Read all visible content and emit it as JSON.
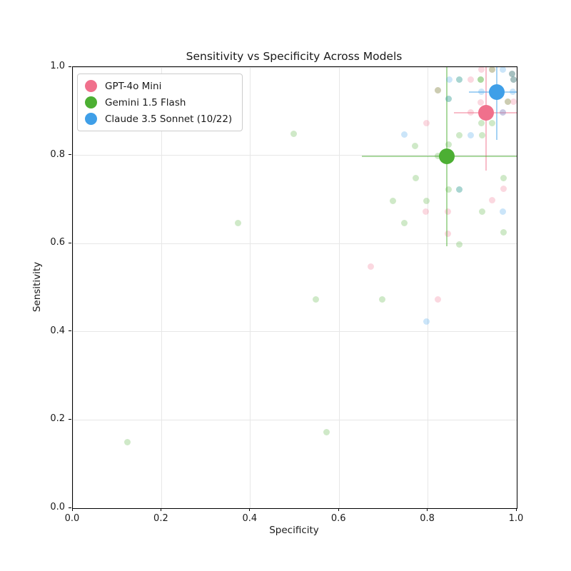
{
  "figure": {
    "title": "Sensitivity vs Specificity Across Models"
  },
  "chart_data": {
    "type": "scatter",
    "title": "Sensitivity vs Specificity Across Models",
    "xlabel": "Specificity",
    "ylabel": "Sensitivity",
    "xlim": [
      0.0,
      1.0
    ],
    "ylim": [
      0.0,
      1.0
    ],
    "xticks": {
      "values": [
        0.0,
        0.2,
        0.4,
        0.6,
        0.8,
        1.0
      ],
      "labels": [
        "0.0",
        "0.2",
        "0.4",
        "0.6",
        "0.8",
        "1.0"
      ]
    },
    "yticks": {
      "values": [
        0.0,
        0.2,
        0.4,
        0.6,
        0.8,
        1.0
      ],
      "labels": [
        "0.0",
        "0.2",
        "0.4",
        "0.6",
        "0.8",
        "1.0"
      ]
    },
    "grid": true,
    "legend": {
      "position": "upper left"
    },
    "series": [
      {
        "name": "GPT-4o Mini",
        "color": "#f0708c",
        "summary": {
          "x": 0.931,
          "y": 0.896,
          "xerr": [
            0.858,
            1.0
          ],
          "yerr": [
            0.765,
            1.0
          ]
        },
        "points": [
          [
            0.921,
            0.994
          ],
          [
            0.945,
            0.994
          ],
          [
            0.99,
            0.984
          ],
          [
            0.896,
            0.972
          ],
          [
            0.992,
            0.972
          ],
          [
            0.823,
            0.947
          ],
          [
            0.918,
            0.92
          ],
          [
            0.98,
            0.922
          ],
          [
            0.993,
            0.921
          ],
          [
            0.896,
            0.897
          ],
          [
            0.969,
            0.897
          ],
          [
            0.796,
            0.873
          ],
          [
            0.795,
            0.673
          ],
          [
            0.845,
            0.673
          ],
          [
            0.944,
            0.698
          ],
          [
            0.97,
            0.724
          ],
          [
            0.845,
            0.622
          ],
          [
            0.823,
            0.473
          ],
          [
            0.671,
            0.548
          ]
        ]
      },
      {
        "name": "Gemini 1.5 Flash",
        "color": "#4caf33",
        "summary": {
          "x": 0.842,
          "y": 0.798,
          "xerr": [
            0.651,
            1.0
          ],
          "yerr": [
            0.594,
            1.0
          ]
        },
        "points": [
          [
            0.945,
            0.994
          ],
          [
            0.99,
            0.984
          ],
          [
            0.871,
            0.972
          ],
          [
            0.919,
            0.972
          ],
          [
            0.919,
            0.972
          ],
          [
            0.992,
            0.972
          ],
          [
            0.823,
            0.947
          ],
          [
            0.847,
            0.928
          ],
          [
            0.98,
            0.922
          ],
          [
            0.921,
            0.873
          ],
          [
            0.944,
            0.873
          ],
          [
            0.871,
            0.846
          ],
          [
            0.922,
            0.846
          ],
          [
            0.497,
            0.848
          ],
          [
            0.771,
            0.821
          ],
          [
            0.846,
            0.824
          ],
          [
            0.823,
            0.798
          ],
          [
            0.773,
            0.748
          ],
          [
            0.721,
            0.697
          ],
          [
            0.797,
            0.697
          ],
          [
            0.846,
            0.723
          ],
          [
            0.871,
            0.723
          ],
          [
            0.922,
            0.673
          ],
          [
            0.97,
            0.748
          ],
          [
            0.746,
            0.647
          ],
          [
            0.87,
            0.598
          ],
          [
            0.97,
            0.625
          ],
          [
            0.372,
            0.646
          ],
          [
            0.548,
            0.473
          ],
          [
            0.697,
            0.473
          ],
          [
            0.572,
            0.173
          ],
          [
            0.123,
            0.149
          ]
        ]
      },
      {
        "name": "Claude 3.5 Sonnet (10/22)",
        "color": "#3f9fe8",
        "summary": {
          "x": 0.955,
          "y": 0.944,
          "xerr": [
            0.893,
            1.0
          ],
          "yerr": [
            0.835,
            1.0
          ]
        },
        "points": [
          [
            0.968,
            0.994
          ],
          [
            0.99,
            0.984
          ],
          [
            0.848,
            0.972
          ],
          [
            0.871,
            0.972
          ],
          [
            0.992,
            0.972
          ],
          [
            0.92,
            0.945
          ],
          [
            0.991,
            0.945
          ],
          [
            0.847,
            0.928
          ],
          [
            0.969,
            0.897
          ],
          [
            0.746,
            0.847
          ],
          [
            0.897,
            0.846
          ],
          [
            0.871,
            0.723
          ],
          [
            0.969,
            0.673
          ],
          [
            0.796,
            0.423
          ]
        ]
      }
    ]
  }
}
